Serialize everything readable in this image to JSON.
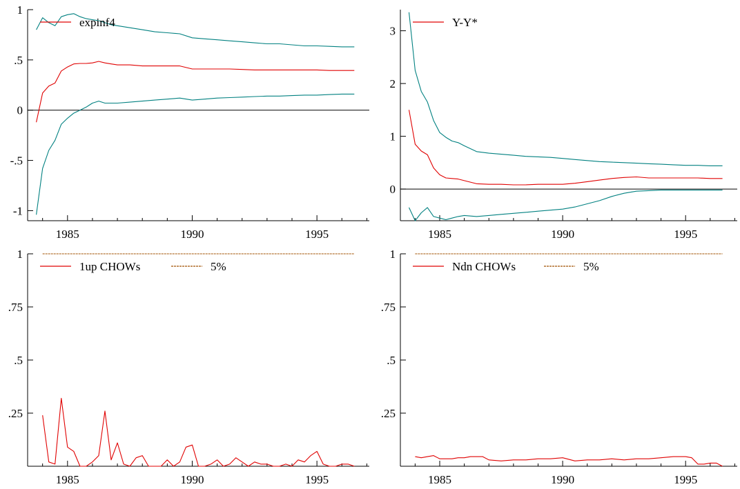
{
  "colors": {
    "estimate": "#e00000",
    "band": "#008080",
    "critical": "#a05000",
    "axis": "#000000"
  },
  "chart_data": [
    {
      "type": "line",
      "panel": "top-left",
      "legend": [
        {
          "label": "expinf4",
          "color": "#e00000",
          "style": "solid"
        }
      ],
      "legend_position": "top-left",
      "xlim": [
        1983.4,
        1997.1
      ],
      "ylim": [
        -1.1,
        1.0
      ],
      "x_ticks": [
        1985,
        1990,
        1995
      ],
      "x_tick_labels": [
        "1985",
        "1990",
        "1995"
      ],
      "y_ticks": [
        -1,
        -0.5,
        0,
        0.5,
        1
      ],
      "y_tick_labels": [
        "-1",
        "-.5",
        "0",
        ".5",
        "1"
      ],
      "zero_line": true,
      "grid": false,
      "series": [
        {
          "name": "expinf4",
          "role": "estimate",
          "color": "#e00000",
          "x": [
            1983.75,
            1984.0,
            1984.25,
            1984.5,
            1984.75,
            1985.0,
            1985.25,
            1985.5,
            1985.75,
            1986.0,
            1986.25,
            1986.5,
            1986.75,
            1987.0,
            1987.5,
            1988.0,
            1988.5,
            1989.0,
            1989.5,
            1990.0,
            1990.5,
            1991.0,
            1991.5,
            1992.0,
            1992.5,
            1993.0,
            1993.5,
            1994.0,
            1994.5,
            1995.0,
            1995.5,
            1996.0,
            1996.5
          ],
          "y": [
            -0.12,
            0.17,
            0.24,
            0.27,
            0.39,
            0.43,
            0.46,
            0.465,
            0.465,
            0.47,
            0.485,
            0.47,
            0.46,
            0.45,
            0.45,
            0.44,
            0.44,
            0.44,
            0.44,
            0.41,
            0.41,
            0.41,
            0.41,
            0.405,
            0.4,
            0.4,
            0.4,
            0.4,
            0.4,
            0.4,
            0.395,
            0.395,
            0.395
          ]
        },
        {
          "role": "upper-band",
          "color": "#008080",
          "x": [
            1983.75,
            1984.0,
            1984.25,
            1984.5,
            1984.75,
            1985.0,
            1985.25,
            1985.5,
            1985.75,
            1986.0,
            1986.25,
            1986.5,
            1986.75,
            1987.0,
            1987.5,
            1988.0,
            1988.5,
            1989.0,
            1989.5,
            1990.0,
            1990.5,
            1991.0,
            1991.5,
            1992.0,
            1992.5,
            1993.0,
            1993.5,
            1994.0,
            1994.5,
            1995.0,
            1995.5,
            1996.0,
            1996.5
          ],
          "y": [
            0.8,
            0.92,
            0.87,
            0.84,
            0.93,
            0.95,
            0.96,
            0.93,
            0.91,
            0.9,
            0.89,
            0.87,
            0.85,
            0.84,
            0.82,
            0.8,
            0.78,
            0.77,
            0.76,
            0.72,
            0.71,
            0.7,
            0.69,
            0.68,
            0.67,
            0.66,
            0.66,
            0.65,
            0.64,
            0.64,
            0.635,
            0.63,
            0.63
          ]
        },
        {
          "role": "lower-band",
          "color": "#008080",
          "x": [
            1983.75,
            1984.0,
            1984.25,
            1984.5,
            1984.75,
            1985.0,
            1985.25,
            1985.5,
            1985.75,
            1986.0,
            1986.25,
            1986.5,
            1986.75,
            1987.0,
            1987.5,
            1988.0,
            1988.5,
            1989.0,
            1989.5,
            1990.0,
            1990.5,
            1991.0,
            1991.5,
            1992.0,
            1992.5,
            1993.0,
            1993.5,
            1994.0,
            1994.5,
            1995.0,
            1995.5,
            1996.0,
            1996.5
          ],
          "y": [
            -1.04,
            -0.58,
            -0.4,
            -0.3,
            -0.14,
            -0.08,
            -0.03,
            0.0,
            0.03,
            0.07,
            0.09,
            0.07,
            0.07,
            0.07,
            0.08,
            0.09,
            0.1,
            0.11,
            0.12,
            0.1,
            0.11,
            0.12,
            0.125,
            0.13,
            0.135,
            0.14,
            0.14,
            0.145,
            0.15,
            0.15,
            0.155,
            0.16,
            0.16
          ]
        }
      ]
    },
    {
      "type": "line",
      "panel": "top-right",
      "legend": [
        {
          "label": "Y-Y*",
          "color": "#e00000",
          "style": "solid"
        }
      ],
      "legend_position": "top-left",
      "xlim": [
        1983.4,
        1997.1
      ],
      "ylim": [
        -0.6,
        3.4
      ],
      "x_ticks": [
        1985,
        1990,
        1995
      ],
      "x_tick_labels": [
        "1985",
        "1990",
        "1995"
      ],
      "y_ticks": [
        0,
        1,
        2,
        3
      ],
      "y_tick_labels": [
        "0",
        "1",
        "2",
        "3"
      ],
      "zero_line": true,
      "grid": false,
      "series": [
        {
          "name": "Y-Y*",
          "role": "estimate",
          "color": "#e00000",
          "x": [
            1983.75,
            1984.0,
            1984.25,
            1984.5,
            1984.75,
            1985.0,
            1985.25,
            1985.5,
            1985.75,
            1986.0,
            1986.5,
            1987.0,
            1987.5,
            1988.0,
            1988.5,
            1989.0,
            1989.5,
            1990.0,
            1990.5,
            1991.0,
            1991.5,
            1992.0,
            1992.5,
            1993.0,
            1993.5,
            1994.0,
            1994.5,
            1995.0,
            1995.5,
            1996.0,
            1996.5
          ],
          "y": [
            1.5,
            0.85,
            0.72,
            0.65,
            0.4,
            0.27,
            0.21,
            0.2,
            0.19,
            0.16,
            0.1,
            0.09,
            0.09,
            0.08,
            0.08,
            0.09,
            0.09,
            0.09,
            0.11,
            0.14,
            0.17,
            0.2,
            0.22,
            0.23,
            0.21,
            0.21,
            0.21,
            0.21,
            0.21,
            0.2,
            0.2
          ]
        },
        {
          "role": "upper-band",
          "color": "#008080",
          "x": [
            1983.75,
            1984.0,
            1984.25,
            1984.5,
            1984.75,
            1985.0,
            1985.25,
            1985.5,
            1985.75,
            1986.0,
            1986.5,
            1987.0,
            1987.5,
            1988.0,
            1988.5,
            1989.0,
            1989.5,
            1990.0,
            1990.5,
            1991.0,
            1991.5,
            1992.0,
            1992.5,
            1993.0,
            1993.5,
            1994.0,
            1994.5,
            1995.0,
            1995.5,
            1996.0,
            1996.5
          ],
          "y": [
            3.35,
            2.25,
            1.85,
            1.65,
            1.3,
            1.07,
            0.98,
            0.91,
            0.88,
            0.82,
            0.71,
            0.68,
            0.66,
            0.64,
            0.62,
            0.61,
            0.6,
            0.58,
            0.56,
            0.54,
            0.52,
            0.51,
            0.5,
            0.49,
            0.48,
            0.47,
            0.46,
            0.45,
            0.45,
            0.44,
            0.44
          ]
        },
        {
          "role": "lower-band",
          "color": "#008080",
          "x": [
            1983.75,
            1984.0,
            1984.25,
            1984.5,
            1984.75,
            1985.0,
            1985.25,
            1985.5,
            1985.75,
            1986.0,
            1986.5,
            1987.0,
            1987.5,
            1988.0,
            1988.5,
            1989.0,
            1989.5,
            1990.0,
            1990.5,
            1991.0,
            1991.5,
            1992.0,
            1992.5,
            1993.0,
            1993.5,
            1994.0,
            1994.5,
            1995.0,
            1995.5,
            1996.0,
            1996.5
          ],
          "y": [
            -0.35,
            -0.6,
            -0.45,
            -0.35,
            -0.52,
            -0.55,
            -0.58,
            -0.55,
            -0.52,
            -0.5,
            -0.52,
            -0.5,
            -0.48,
            -0.46,
            -0.44,
            -0.42,
            -0.4,
            -0.38,
            -0.34,
            -0.28,
            -0.22,
            -0.14,
            -0.08,
            -0.04,
            -0.03,
            -0.02,
            -0.02,
            -0.02,
            -0.02,
            -0.02,
            -0.02
          ]
        }
      ]
    },
    {
      "type": "line",
      "panel": "bottom-left",
      "legend": [
        {
          "label": "1up CHOWs",
          "color": "#e00000",
          "style": "solid"
        },
        {
          "label": "5%",
          "color": "#a05000",
          "style": "dashed"
        }
      ],
      "legend_position": "top-left",
      "xlim": [
        1983.4,
        1997.1
      ],
      "ylim": [
        0,
        1.0
      ],
      "x_ticks": [
        1985,
        1990,
        1995
      ],
      "x_tick_labels": [
        "1985",
        "1990",
        "1995"
      ],
      "y_ticks": [
        0.25,
        0.5,
        0.75,
        1
      ],
      "y_tick_labels": [
        ".25",
        ".5",
        ".75",
        "1"
      ],
      "zero_line": false,
      "grid": false,
      "series": [
        {
          "name": "1up CHOWs",
          "color": "#e00000",
          "x": [
            1984.0,
            1984.25,
            1984.5,
            1984.75,
            1985.0,
            1985.25,
            1985.5,
            1985.75,
            1986.0,
            1986.25,
            1986.5,
            1986.75,
            1987.0,
            1987.25,
            1987.5,
            1987.75,
            1988.0,
            1988.25,
            1988.5,
            1988.75,
            1989.0,
            1989.25,
            1989.5,
            1989.75,
            1990.0,
            1990.25,
            1990.5,
            1990.75,
            1991.0,
            1991.25,
            1991.5,
            1991.75,
            1992.0,
            1992.25,
            1992.5,
            1992.75,
            1993.0,
            1993.25,
            1993.5,
            1993.75,
            1994.0,
            1994.25,
            1994.5,
            1994.75,
            1995.0,
            1995.25,
            1995.5,
            1995.75,
            1996.0,
            1996.25,
            1996.5
          ],
          "y": [
            0.24,
            0.02,
            0.01,
            0.32,
            0.09,
            0.07,
            0.0,
            0.0,
            0.02,
            0.05,
            0.26,
            0.03,
            0.11,
            0.01,
            0.0,
            0.04,
            0.05,
            0.0,
            0.0,
            0.0,
            0.03,
            0.0,
            0.02,
            0.09,
            0.1,
            0.0,
            0.0,
            0.01,
            0.03,
            0.0,
            0.01,
            0.04,
            0.02,
            0.0,
            0.02,
            0.01,
            0.01,
            0.0,
            0.0,
            0.01,
            0.0,
            0.03,
            0.02,
            0.05,
            0.07,
            0.01,
            0.0,
            0.0,
            0.01,
            0.01,
            0.0
          ]
        },
        {
          "name": "5%",
          "color": "#a05000",
          "style": "dashed",
          "x": [
            1984.0,
            1996.5
          ],
          "y": [
            1.0,
            1.0
          ]
        }
      ]
    },
    {
      "type": "line",
      "panel": "bottom-right",
      "legend": [
        {
          "label": "Ndn CHOWs",
          "color": "#e00000",
          "style": "solid"
        },
        {
          "label": "5%",
          "color": "#a05000",
          "style": "dashed"
        }
      ],
      "legend_position": "top-left",
      "xlim": [
        1983.4,
        1997.1
      ],
      "ylim": [
        0,
        1.0
      ],
      "x_ticks": [
        1985,
        1990,
        1995
      ],
      "x_tick_labels": [
        "1985",
        "1990",
        "1995"
      ],
      "y_ticks": [
        0.25,
        0.5,
        0.75,
        1
      ],
      "y_tick_labels": [
        ".25",
        ".5",
        ".75",
        "1"
      ],
      "zero_line": false,
      "grid": false,
      "series": [
        {
          "name": "Ndn CHOWs",
          "color": "#e00000",
          "x": [
            1984.0,
            1984.25,
            1984.5,
            1984.75,
            1985.0,
            1985.25,
            1985.5,
            1985.75,
            1986.0,
            1986.25,
            1986.5,
            1986.75,
            1987.0,
            1987.5,
            1988.0,
            1988.5,
            1989.0,
            1989.5,
            1990.0,
            1990.5,
            1991.0,
            1991.5,
            1992.0,
            1992.5,
            1993.0,
            1993.5,
            1994.0,
            1994.5,
            1995.0,
            1995.25,
            1995.5,
            1995.75,
            1996.0,
            1996.25,
            1996.5
          ],
          "y": [
            0.045,
            0.04,
            0.045,
            0.05,
            0.035,
            0.035,
            0.035,
            0.04,
            0.04,
            0.045,
            0.045,
            0.045,
            0.03,
            0.025,
            0.03,
            0.03,
            0.035,
            0.035,
            0.04,
            0.025,
            0.03,
            0.03,
            0.035,
            0.03,
            0.035,
            0.035,
            0.04,
            0.045,
            0.045,
            0.04,
            0.01,
            0.01,
            0.015,
            0.015,
            0.0
          ]
        },
        {
          "name": "5%",
          "color": "#a05000",
          "style": "dashed",
          "x": [
            1984.0,
            1996.5
          ],
          "y": [
            1.0,
            1.0
          ]
        }
      ]
    }
  ]
}
